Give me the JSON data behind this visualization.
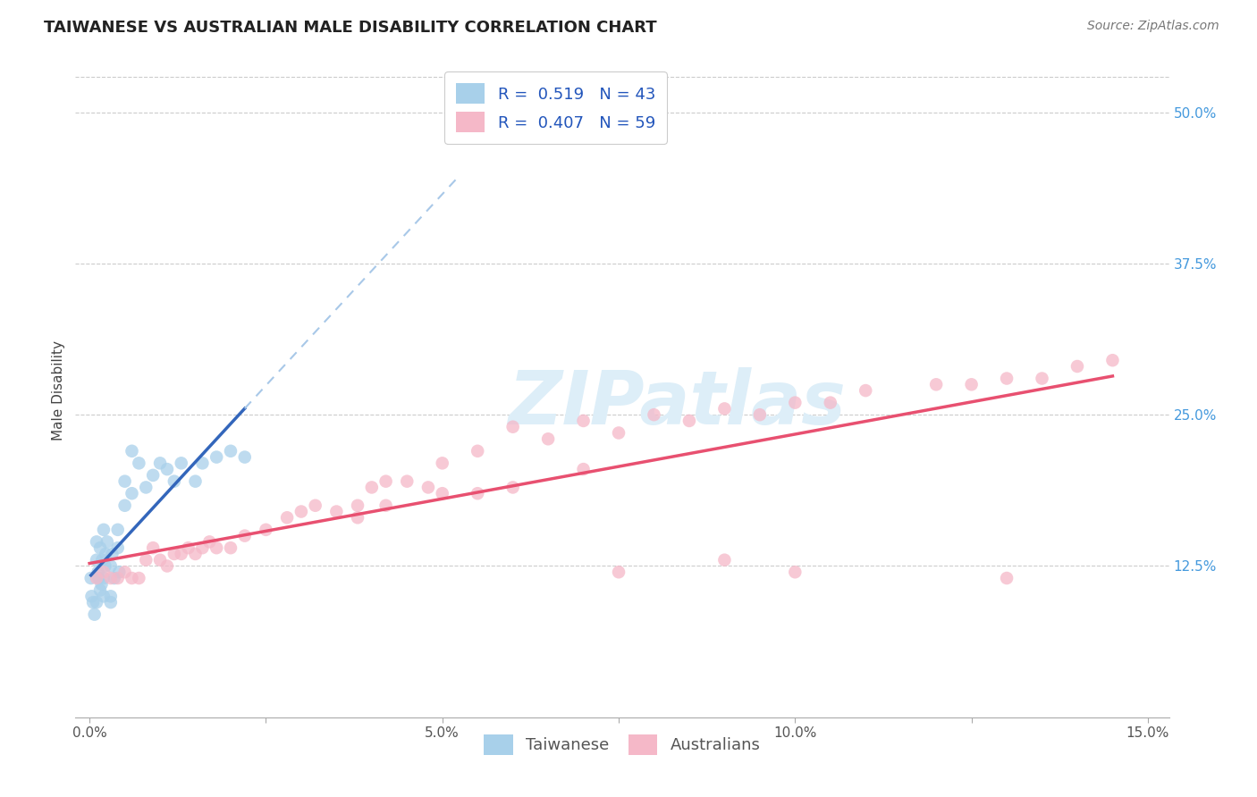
{
  "title": "TAIWANESE VS AUSTRALIAN MALE DISABILITY CORRELATION CHART",
  "source": "Source: ZipAtlas.com",
  "ylabel": "Male Disability",
  "xlim": [
    -0.002,
    0.153
  ],
  "ylim": [
    0.0,
    0.54
  ],
  "xticks": [
    0.0,
    0.025,
    0.05,
    0.075,
    0.1,
    0.125,
    0.15
  ],
  "xtick_labels": [
    "0.0%",
    "",
    "5.0%",
    "",
    "10.0%",
    "",
    "15.0%"
  ],
  "ytick_vals": [
    0.5,
    0.375,
    0.25,
    0.125
  ],
  "ytick_labels": [
    "50.0%",
    "37.5%",
    "25.0%",
    "12.5%"
  ],
  "taiwanese_color": "#a8d0ea",
  "australian_color": "#f5b8c8",
  "taiwanese_line_color": "#3366bb",
  "australian_line_color": "#e85070",
  "taiwanese_dashed_color": "#a8c8e8",
  "background_color": "#ffffff",
  "grid_color": "#cccccc",
  "title_color": "#222222",
  "source_color": "#777777",
  "right_tick_color": "#4499dd",
  "watermark_color": "#ddeef8",
  "tw_x": [
    0.0002,
    0.0003,
    0.0005,
    0.0007,
    0.001,
    0.001,
    0.001,
    0.0012,
    0.0013,
    0.0015,
    0.0015,
    0.0017,
    0.0018,
    0.002,
    0.002,
    0.002,
    0.0022,
    0.0023,
    0.0025,
    0.003,
    0.003,
    0.003,
    0.0032,
    0.0035,
    0.004,
    0.004,
    0.0042,
    0.005,
    0.005,
    0.006,
    0.006,
    0.007,
    0.008,
    0.009,
    0.01,
    0.011,
    0.012,
    0.013,
    0.015,
    0.016,
    0.018,
    0.02,
    0.022
  ],
  "tw_y": [
    0.115,
    0.1,
    0.095,
    0.085,
    0.13,
    0.145,
    0.095,
    0.12,
    0.115,
    0.14,
    0.105,
    0.11,
    0.13,
    0.115,
    0.1,
    0.155,
    0.125,
    0.135,
    0.145,
    0.1,
    0.125,
    0.095,
    0.135,
    0.115,
    0.155,
    0.14,
    0.12,
    0.195,
    0.175,
    0.185,
    0.22,
    0.21,
    0.19,
    0.2,
    0.21,
    0.205,
    0.195,
    0.21,
    0.195,
    0.21,
    0.215,
    0.22,
    0.215
  ],
  "au_x": [
    0.001,
    0.002,
    0.003,
    0.004,
    0.005,
    0.006,
    0.007,
    0.008,
    0.009,
    0.01,
    0.011,
    0.012,
    0.013,
    0.014,
    0.015,
    0.016,
    0.017,
    0.018,
    0.02,
    0.022,
    0.025,
    0.028,
    0.03,
    0.032,
    0.035,
    0.038,
    0.04,
    0.042,
    0.045,
    0.048,
    0.05,
    0.055,
    0.06,
    0.065,
    0.07,
    0.075,
    0.08,
    0.085,
    0.09,
    0.095,
    0.1,
    0.105,
    0.11,
    0.12,
    0.125,
    0.13,
    0.135,
    0.14,
    0.145,
    0.038,
    0.042,
    0.05,
    0.055,
    0.06,
    0.07,
    0.075,
    0.09,
    0.1,
    0.13
  ],
  "au_y": [
    0.115,
    0.12,
    0.115,
    0.115,
    0.12,
    0.115,
    0.115,
    0.13,
    0.14,
    0.13,
    0.125,
    0.135,
    0.135,
    0.14,
    0.135,
    0.14,
    0.145,
    0.14,
    0.14,
    0.15,
    0.155,
    0.165,
    0.17,
    0.175,
    0.17,
    0.175,
    0.19,
    0.195,
    0.195,
    0.19,
    0.21,
    0.22,
    0.24,
    0.23,
    0.245,
    0.235,
    0.25,
    0.245,
    0.255,
    0.25,
    0.26,
    0.26,
    0.27,
    0.275,
    0.275,
    0.28,
    0.28,
    0.29,
    0.295,
    0.165,
    0.175,
    0.185,
    0.185,
    0.19,
    0.205,
    0.12,
    0.13,
    0.12,
    0.115
  ]
}
